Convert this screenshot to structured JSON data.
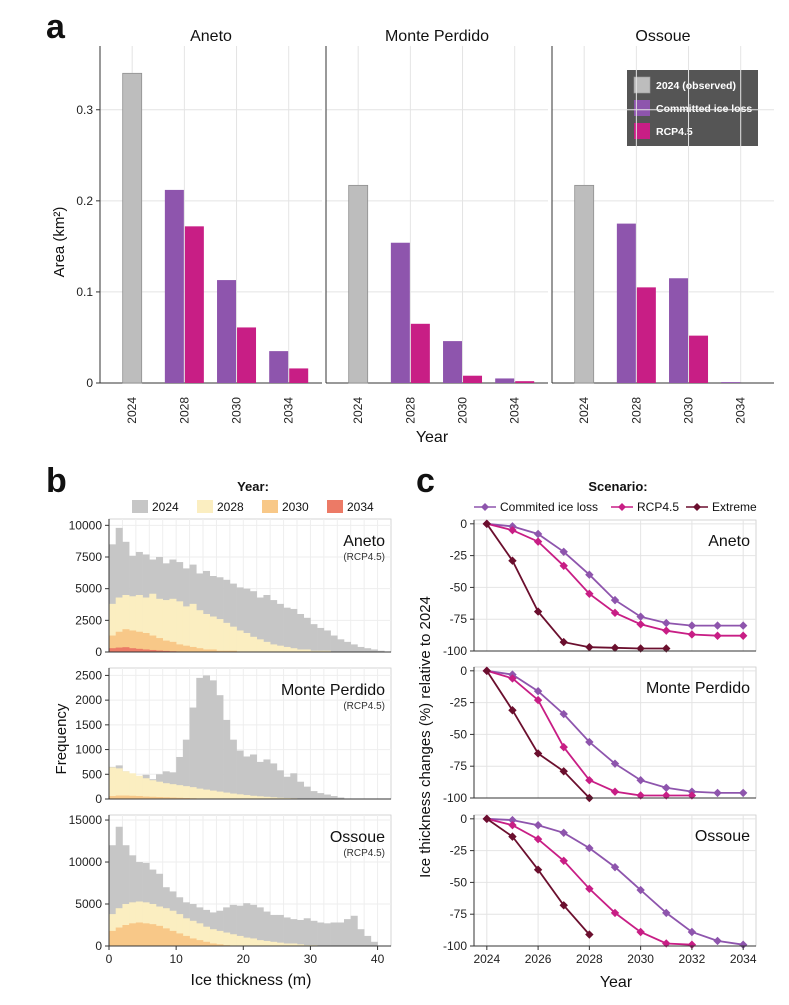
{
  "colors": {
    "obs": "#bdbdbd",
    "committed": "#8e55ad",
    "rcp45": "#c81e85",
    "extreme": "#6b0f2e",
    "h2024": "#c6c6c6",
    "h2028": "#fbeec1",
    "h2030": "#f8c888",
    "h2034": "#ec7a66",
    "grid": "#e4e4e4",
    "axis": "#333333"
  },
  "panel_a": {
    "letter": "a",
    "ylabel": "Area (km²)",
    "xlabel": "Year",
    "legend": [
      "2024 (observed)",
      "Committed ice loss",
      "RCP4.5"
    ]
  },
  "panel_b": {
    "letter": "b",
    "legend_title": "Year:",
    "legend": [
      "2024",
      "2028",
      "2030",
      "2034"
    ],
    "ylabel": "Frequency",
    "xlabel": "Ice thickness (m)",
    "subtitle": "(RCP4.5)"
  },
  "panel_c": {
    "letter": "c",
    "legend_title": "Scenario:",
    "legend": [
      "Commited ice loss",
      "RCP4.5",
      "Extreme"
    ],
    "ylabel": "Ice thickness changes (%) relative to 2024",
    "xlabel": "Year"
  },
  "chart_data": [
    {
      "type": "bar",
      "panel": "a",
      "ylabel": "Area (km²)",
      "xlabel": "Year",
      "ylim": [
        0,
        0.37
      ],
      "yticks": [
        0,
        0.1,
        0.2,
        0.3
      ],
      "ytick_labels": [
        "0",
        "0.1",
        "0.2",
        "0.3"
      ],
      "categories": [
        "2024",
        "2028",
        "2030",
        "2034"
      ],
      "facets": [
        {
          "title": "Aneto",
          "obs": 0.34,
          "committed": [
            0.212,
            0.113,
            0.035
          ],
          "rcp45": [
            0.172,
            0.061,
            0.016
          ]
        },
        {
          "title": "Monte Perdido",
          "obs": 0.217,
          "committed": [
            0.154,
            0.046,
            0.005
          ],
          "rcp45": [
            0.065,
            0.008,
            0.002
          ]
        },
        {
          "title": "Ossoue",
          "obs": 0.217,
          "committed": [
            0.175,
            0.115,
            0.001
          ],
          "rcp45": [
            0.105,
            0.052,
            0
          ]
        }
      ]
    },
    {
      "type": "bar",
      "panel": "b",
      "ylabel": "Frequency",
      "xlabel": "Ice thickness (m)",
      "bin_width": 1,
      "xlim": [
        0,
        42
      ],
      "xticks": [
        0,
        10,
        20,
        30,
        40
      ],
      "facets": [
        {
          "title": "Aneto",
          "subtitle": "(RCP4.5)",
          "ylim": [
            0,
            10500
          ],
          "yticks": [
            0,
            2500,
            5000,
            7500,
            10000
          ],
          "h2024": [
            8500,
            9800,
            8700,
            7600,
            7900,
            7700,
            7300,
            7500,
            7000,
            7300,
            7100,
            6600,
            6900,
            6200,
            6400,
            6000,
            5900,
            5700,
            5400,
            5100,
            5000,
            4800,
            4300,
            4500,
            4100,
            3800,
            3500,
            3400,
            3000,
            2700,
            2200,
            1900,
            1700,
            1300,
            1000,
            800,
            600,
            400,
            300,
            200,
            100,
            0
          ],
          "h2028": [
            3800,
            4300,
            4500,
            4400,
            4500,
            4300,
            4600,
            4200,
            4100,
            4200,
            4000,
            3600,
            3800,
            3300,
            3000,
            2800,
            2600,
            2300,
            2000,
            1700,
            1500,
            1200,
            1000,
            800,
            600,
            500,
            400,
            300,
            200,
            200,
            100,
            100,
            100,
            0,
            0,
            0,
            0,
            0,
            0,
            0,
            0,
            0
          ],
          "h2030": [
            1300,
            1600,
            1800,
            1700,
            1600,
            1500,
            1300,
            1100,
            900,
            800,
            600,
            500,
            400,
            300,
            200,
            200,
            100,
            100,
            100,
            0,
            0,
            0,
            0,
            0,
            0,
            0,
            0,
            0,
            0,
            0,
            0,
            0,
            0,
            0,
            0,
            0,
            0,
            0,
            0,
            0,
            0,
            0
          ],
          "h2034": [
            300,
            350,
            380,
            300,
            250,
            200,
            160,
            120,
            90,
            60,
            40,
            20,
            10,
            0,
            0,
            0,
            0,
            0,
            0,
            0,
            0,
            0,
            0,
            0,
            0,
            0,
            0,
            0,
            0,
            0,
            0,
            0,
            0,
            0,
            0,
            0,
            0,
            0,
            0,
            0,
            0,
            0
          ]
        },
        {
          "title": "Monte Perdido",
          "subtitle": "(RCP4.5)",
          "ylim": [
            0,
            2650
          ],
          "yticks": [
            0,
            500,
            1000,
            1500,
            2000,
            2500
          ],
          "h2024": [
            650,
            680,
            560,
            450,
            450,
            490,
            400,
            500,
            560,
            540,
            850,
            1200,
            1850,
            2450,
            2500,
            2400,
            2100,
            1600,
            1200,
            980,
            860,
            900,
            750,
            800,
            720,
            580,
            450,
            520,
            350,
            250,
            160,
            120,
            90,
            60,
            30,
            10,
            0,
            0,
            0,
            0,
            0,
            0
          ],
          "h2028": [
            640,
            620,
            560,
            520,
            470,
            420,
            380,
            350,
            320,
            300,
            280,
            260,
            240,
            210,
            190,
            170,
            150,
            130,
            110,
            95,
            80,
            65,
            55,
            45,
            35,
            25,
            20,
            15,
            10,
            5,
            0,
            0,
            0,
            0,
            0,
            0,
            0,
            0,
            0,
            0,
            0,
            0
          ],
          "h2030": [
            60,
            70,
            70,
            65,
            60,
            50,
            45,
            40,
            35,
            30,
            25,
            20,
            15,
            10,
            8,
            5,
            3,
            0,
            0,
            0,
            0,
            0,
            0,
            0,
            0,
            0,
            0,
            0,
            0,
            0,
            0,
            0,
            0,
            0,
            0,
            0,
            0,
            0,
            0,
            0,
            0,
            0
          ],
          "h2034": [
            10,
            10,
            10,
            8,
            6,
            5,
            4,
            3,
            2,
            1,
            0,
            0,
            0,
            0,
            0,
            0,
            0,
            0,
            0,
            0,
            0,
            0,
            0,
            0,
            0,
            0,
            0,
            0,
            0,
            0,
            0,
            0,
            0,
            0,
            0,
            0,
            0,
            0,
            0,
            0,
            0,
            0
          ]
        },
        {
          "title": "Ossoue",
          "subtitle": "(RCP4.5)",
          "ylim": [
            0,
            15600
          ],
          "yticks": [
            0,
            5000,
            10000,
            15000
          ],
          "h2024": [
            12000,
            14200,
            12000,
            10800,
            10000,
            9900,
            9100,
            8600,
            7000,
            6500,
            5800,
            5200,
            5000,
            4600,
            4300,
            4000,
            4200,
            4600,
            4900,
            4800,
            5100,
            4900,
            4600,
            4100,
            3700,
            3700,
            3400,
            3200,
            3100,
            3300,
            3000,
            2800,
            2700,
            2800,
            2800,
            3200,
            3600,
            2000,
            1200,
            500,
            0,
            0
          ],
          "h2028": [
            3800,
            4500,
            5000,
            5200,
            5300,
            5200,
            5000,
            4700,
            4500,
            4200,
            3800,
            3300,
            3000,
            2700,
            2300,
            2000,
            1800,
            1600,
            1400,
            1200,
            1000,
            900,
            700,
            600,
            500,
            400,
            300,
            300,
            200,
            100,
            100,
            0,
            0,
            0,
            0,
            0,
            0,
            0,
            0,
            0,
            0,
            0
          ],
          "h2030": [
            1800,
            2200,
            2500,
            2700,
            2800,
            2700,
            2600,
            2400,
            2100,
            1800,
            1500,
            1200,
            900,
            700,
            500,
            300,
            200,
            100,
            50,
            0,
            0,
            0,
            0,
            0,
            0,
            0,
            0,
            0,
            0,
            0,
            0,
            0,
            0,
            0,
            0,
            0,
            0,
            0,
            0,
            0,
            0,
            0
          ],
          "h2034": [
            0,
            0,
            0,
            0,
            0,
            0,
            0,
            0,
            0,
            0,
            0,
            0,
            0,
            0,
            0,
            0,
            0,
            0,
            0,
            0,
            0,
            0,
            0,
            0,
            0,
            0,
            0,
            0,
            0,
            0,
            0,
            0,
            0,
            0,
            0,
            0,
            0,
            0,
            0,
            0,
            0,
            0
          ]
        }
      ]
    },
    {
      "type": "line",
      "panel": "c",
      "ylabel": "Ice thickness changes (%) relative to 2024",
      "xlabel": "Year",
      "xlim": [
        2023.5,
        2034.5
      ],
      "ylim": [
        -100,
        3
      ],
      "xticks": [
        2024,
        2026,
        2028,
        2030,
        2032,
        2034
      ],
      "yticks": [
        0,
        -25,
        -50,
        -75,
        -100
      ],
      "facets": [
        {
          "title": "Aneto",
          "committed": {
            "x": [
              2024,
              2025,
              2026,
              2027,
              2028,
              2029,
              2030,
              2031,
              2032,
              2033,
              2034
            ],
            "y": [
              0,
              -2,
              -8,
              -22,
              -40,
              -60,
              -73,
              -78,
              -80,
              -80,
              -80
            ]
          },
          "rcp45": {
            "x": [
              2024,
              2025,
              2026,
              2027,
              2028,
              2029,
              2030,
              2031,
              2032,
              2033,
              2034
            ],
            "y": [
              0,
              -5,
              -14,
              -33,
              -55,
              -70,
              -79,
              -84,
              -87,
              -88,
              -88
            ]
          },
          "extreme": {
            "x": [
              2024,
              2025,
              2026,
              2027,
              2028,
              2029,
              2030,
              2031
            ],
            "y": [
              0,
              -29,
              -69,
              -93,
              -97,
              -97.5,
              -98,
              -98
            ]
          }
        },
        {
          "title": "Monte Perdido",
          "committed": {
            "x": [
              2024,
              2025,
              2026,
              2027,
              2028,
              2029,
              2030,
              2031,
              2032,
              2033,
              2034
            ],
            "y": [
              0,
              -3,
              -16,
              -34,
              -56,
              -73,
              -86,
              -92,
              -95,
              -96,
              -96
            ]
          },
          "rcp45": {
            "x": [
              2024,
              2025,
              2026,
              2027,
              2028,
              2029,
              2030,
              2031,
              2032
            ],
            "y": [
              0,
              -6,
              -23,
              -60,
              -86,
              -95,
              -98,
              -98,
              -98
            ]
          },
          "extreme": {
            "x": [
              2024,
              2025,
              2026,
              2027,
              2028
            ],
            "y": [
              0,
              -31,
              -65,
              -79,
              -100
            ]
          }
        },
        {
          "title": "Ossoue",
          "committed": {
            "x": [
              2024,
              2025,
              2026,
              2027,
              2028,
              2029,
              2030,
              2031,
              2032,
              2033,
              2034
            ],
            "y": [
              0,
              -1,
              -5,
              -11,
              -23,
              -38,
              -56,
              -74,
              -89,
              -96,
              -99
            ]
          },
          "rcp45": {
            "x": [
              2024,
              2025,
              2026,
              2027,
              2028,
              2029,
              2030,
              2031,
              2032
            ],
            "y": [
              0,
              -5,
              -16,
              -33,
              -55,
              -74,
              -89,
              -98,
              -99
            ]
          },
          "extreme": {
            "x": [
              2024,
              2025,
              2026,
              2027,
              2028
            ],
            "y": [
              0,
              -14,
              -40,
              -68,
              -91
            ]
          }
        }
      ]
    }
  ]
}
